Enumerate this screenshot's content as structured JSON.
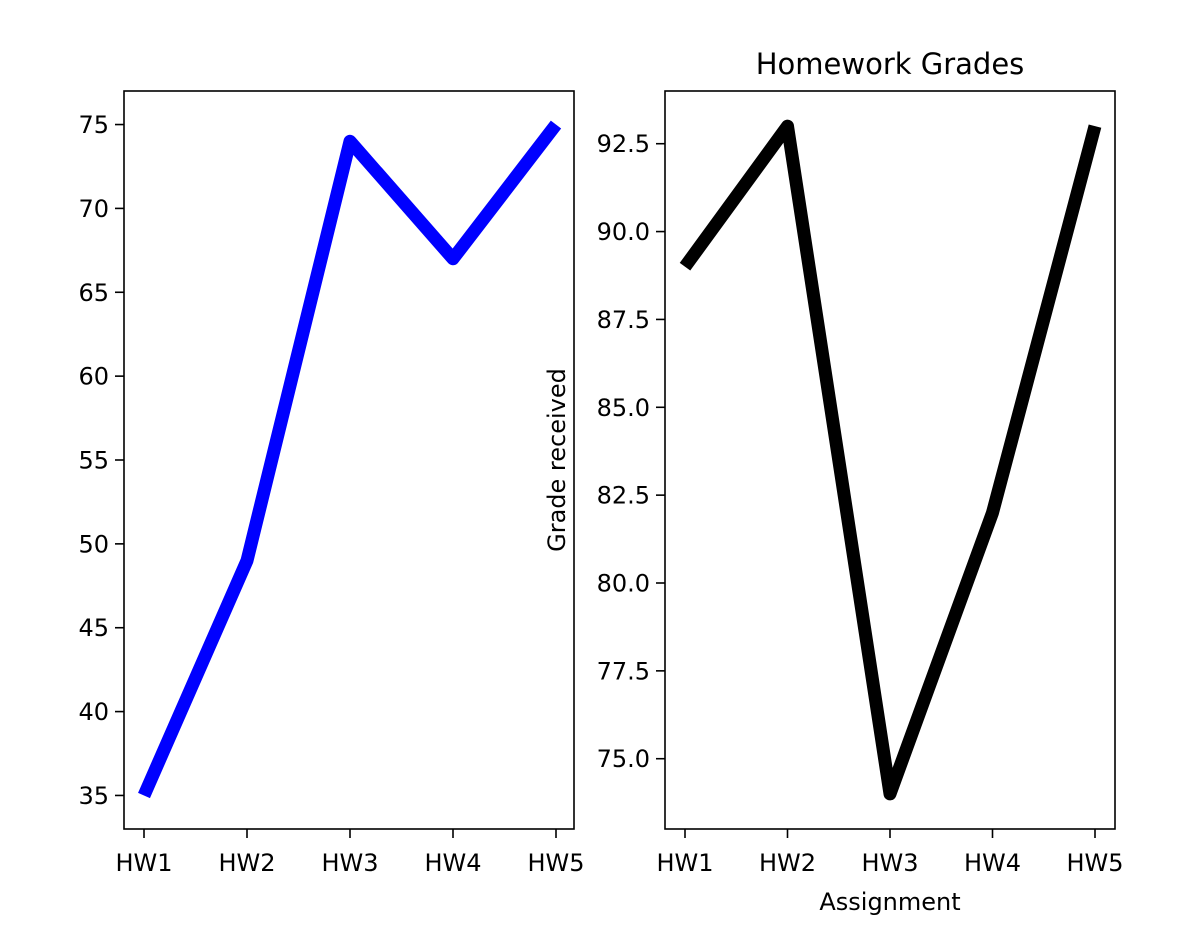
{
  "chart_data": [
    {
      "type": "line",
      "title": "",
      "xlabel": "",
      "ylabel": "",
      "categories": [
        "HW1",
        "HW2",
        "HW3",
        "HW4",
        "HW5"
      ],
      "series": [
        {
          "values": [
            35,
            49,
            74,
            67,
            75
          ],
          "color": "#0000ff"
        }
      ],
      "ylim": [
        33,
        77
      ],
      "yticks": [
        35,
        40,
        45,
        50,
        55,
        60,
        65,
        70,
        75
      ],
      "ytick_labels": [
        "35",
        "40",
        "45",
        "50",
        "55",
        "60",
        "65",
        "70",
        "75"
      ],
      "grid": false
    },
    {
      "type": "line",
      "title": "Homework Grades",
      "xlabel": "Assignment",
      "ylabel": "Grade received",
      "categories": [
        "HW1",
        "HW2",
        "HW3",
        "HW4",
        "HW5"
      ],
      "series": [
        {
          "values": [
            89,
            93,
            74,
            82,
            93
          ],
          "color": "#000000"
        }
      ],
      "ylim": [
        73,
        94
      ],
      "yticks": [
        75,
        77.5,
        80,
        82.5,
        85,
        87.5,
        90,
        92.5
      ],
      "ytick_labels": [
        "75.0",
        "77.5",
        "80.0",
        "82.5",
        "85.0",
        "87.5",
        "90.0",
        "92.5"
      ],
      "grid": false
    }
  ]
}
